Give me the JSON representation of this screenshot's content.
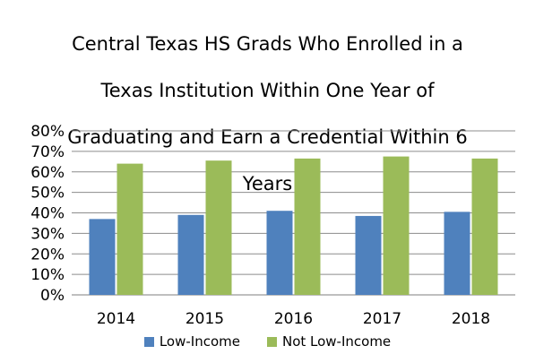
{
  "chart_data": {
    "type": "bar",
    "title": "Central Texas HS Grads Who Enrolled in a Texas Institution Within One Year of Graduating and Earn a Credential Within 6 Years",
    "categories": [
      "2014",
      "2015",
      "2016",
      "2017",
      "2018"
    ],
    "series": [
      {
        "name": "Low-Income",
        "values": [
          0.37,
          0.39,
          0.41,
          0.385,
          0.405
        ],
        "color": "#4F81BD"
      },
      {
        "name": "Not Low-Income",
        "values": [
          0.64,
          0.655,
          0.665,
          0.675,
          0.665
        ],
        "color": "#9BBB59"
      }
    ],
    "ylim": [
      0,
      0.8
    ],
    "yticks": [
      "0%",
      "10%",
      "20%",
      "30%",
      "40%",
      "50%",
      "60%",
      "70%",
      "80%"
    ],
    "grid": true,
    "legend_position": "bottom",
    "xlabel": "",
    "ylabel": ""
  },
  "title_lines": [
    "Central Texas HS Grads Who Enrolled in a",
    "Texas Institution Within One Year of",
    "Graduating and Earn a Credential Within 6",
    "Years"
  ]
}
